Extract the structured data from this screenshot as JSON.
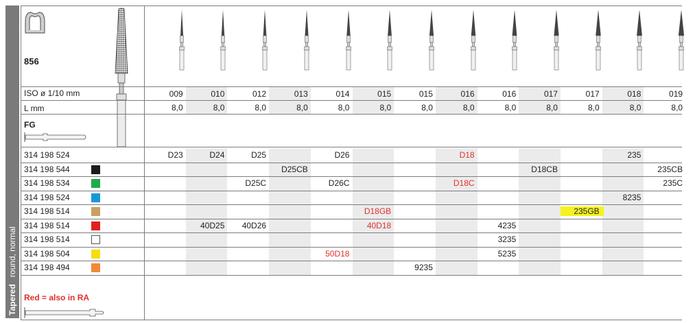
{
  "header": {
    "product": "856",
    "iso_label": "ISO ø 1/10 mm",
    "length_label": "L mm",
    "shank_label": "FG",
    "note": "Red = also in RA",
    "sidebar_bold": "Tapered",
    "sidebar_normal": "round, normal"
  },
  "sizes": [
    "009",
    "010",
    "012",
    "013",
    "014",
    "015",
    "015",
    "016",
    "016",
    "017",
    "017",
    "018",
    "019"
  ],
  "lengths": [
    "8,0",
    "8,0",
    "8,0",
    "8,0",
    "8,0",
    "8,0",
    "8,0",
    "8,0",
    "8,0",
    "8,0",
    "8,0",
    "8,0",
    "8,0"
  ],
  "rows": [
    {
      "code": "314 198 524",
      "swatch": "",
      "cells": [
        "D23",
        "D24",
        "D25",
        "",
        "D26",
        "",
        "",
        "D18",
        "",
        "",
        "",
        "235",
        ""
      ]
    },
    {
      "code": "314 198 544",
      "swatch": "#1b1b1b",
      "cells": [
        "",
        "",
        "",
        "D25CB",
        "",
        "",
        "",
        "",
        "",
        "D18CB",
        "",
        "",
        "235CB"
      ]
    },
    {
      "code": "314 198 534",
      "swatch": "#1faa4a",
      "cells": [
        "",
        "",
        "D25C",
        "",
        "D26C",
        "",
        "",
        "D18C",
        "",
        "",
        "",
        "",
        "235C"
      ]
    },
    {
      "code": "314 198 524",
      "swatch": "#1a96d8",
      "cells": [
        "",
        "",
        "",
        "",
        "",
        "",
        "",
        "",
        "",
        "",
        "",
        "8235",
        ""
      ]
    },
    {
      "code": "314 198 514",
      "swatch": "#c8a064",
      "cells": [
        "",
        "",
        "",
        "",
        "",
        "D18GB",
        "",
        "",
        "",
        "",
        "235GB",
        "",
        ""
      ]
    },
    {
      "code": "314 198 514",
      "swatch": "#e02020",
      "cells": [
        "",
        "40D25",
        "40D26",
        "",
        "",
        "40D18",
        "",
        "",
        "4235",
        "",
        "",
        "",
        ""
      ]
    },
    {
      "code": "314 198 514",
      "swatch": "#ffffff",
      "cells": [
        "",
        "",
        "",
        "",
        "",
        "",
        "",
        "",
        "3235",
        "",
        "",
        "",
        ""
      ]
    },
    {
      "code": "314 198 504",
      "swatch": "#f5de10",
      "cells": [
        "",
        "",
        "",
        "",
        "50D18",
        "",
        "",
        "",
        "5235",
        "",
        "",
        "",
        ""
      ]
    },
    {
      "code": "314 198 494",
      "swatch": "#f08a3a",
      "cells": [
        "",
        "",
        "",
        "",
        "",
        "",
        "9235",
        "",
        "",
        "",
        "",
        "",
        ""
      ]
    }
  ],
  "red_codes": [
    "D18",
    "D18C",
    "D18GB",
    "40D18",
    "50D18"
  ],
  "highlight_codes": [
    "235GB"
  ],
  "colors": {
    "sidebar": "#7a7a7a",
    "red": "#e0302a",
    "highlight": "#f5f220",
    "alt_column": "#ebebeb"
  },
  "icons": [
    "tooth-crown-icon",
    "bur-instrument-icon",
    "fg-shank-icon",
    "ra-shank-icon"
  ]
}
